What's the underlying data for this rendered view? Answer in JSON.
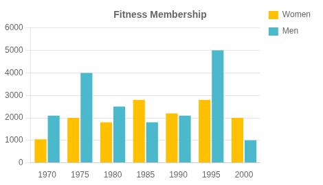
{
  "chart_data": {
    "type": "bar",
    "title": "Fitness Membership",
    "categories": [
      "1970",
      "1975",
      "1980",
      "1985",
      "1990",
      "1995",
      "2000"
    ],
    "series": [
      {
        "name": "Women",
        "color": "#FFC000",
        "values": [
          1050,
          2000,
          1800,
          2800,
          2200,
          2800,
          2000
        ]
      },
      {
        "name": "Men",
        "color": "#4BB8CC",
        "values": [
          2100,
          4000,
          2500,
          1800,
          2100,
          5000,
          1000
        ]
      }
    ],
    "ylim": [
      0,
      6000
    ],
    "yticks": [
      0,
      1000,
      2000,
      3000,
      4000,
      5000,
      6000
    ],
    "grid": true,
    "legend": "right"
  }
}
